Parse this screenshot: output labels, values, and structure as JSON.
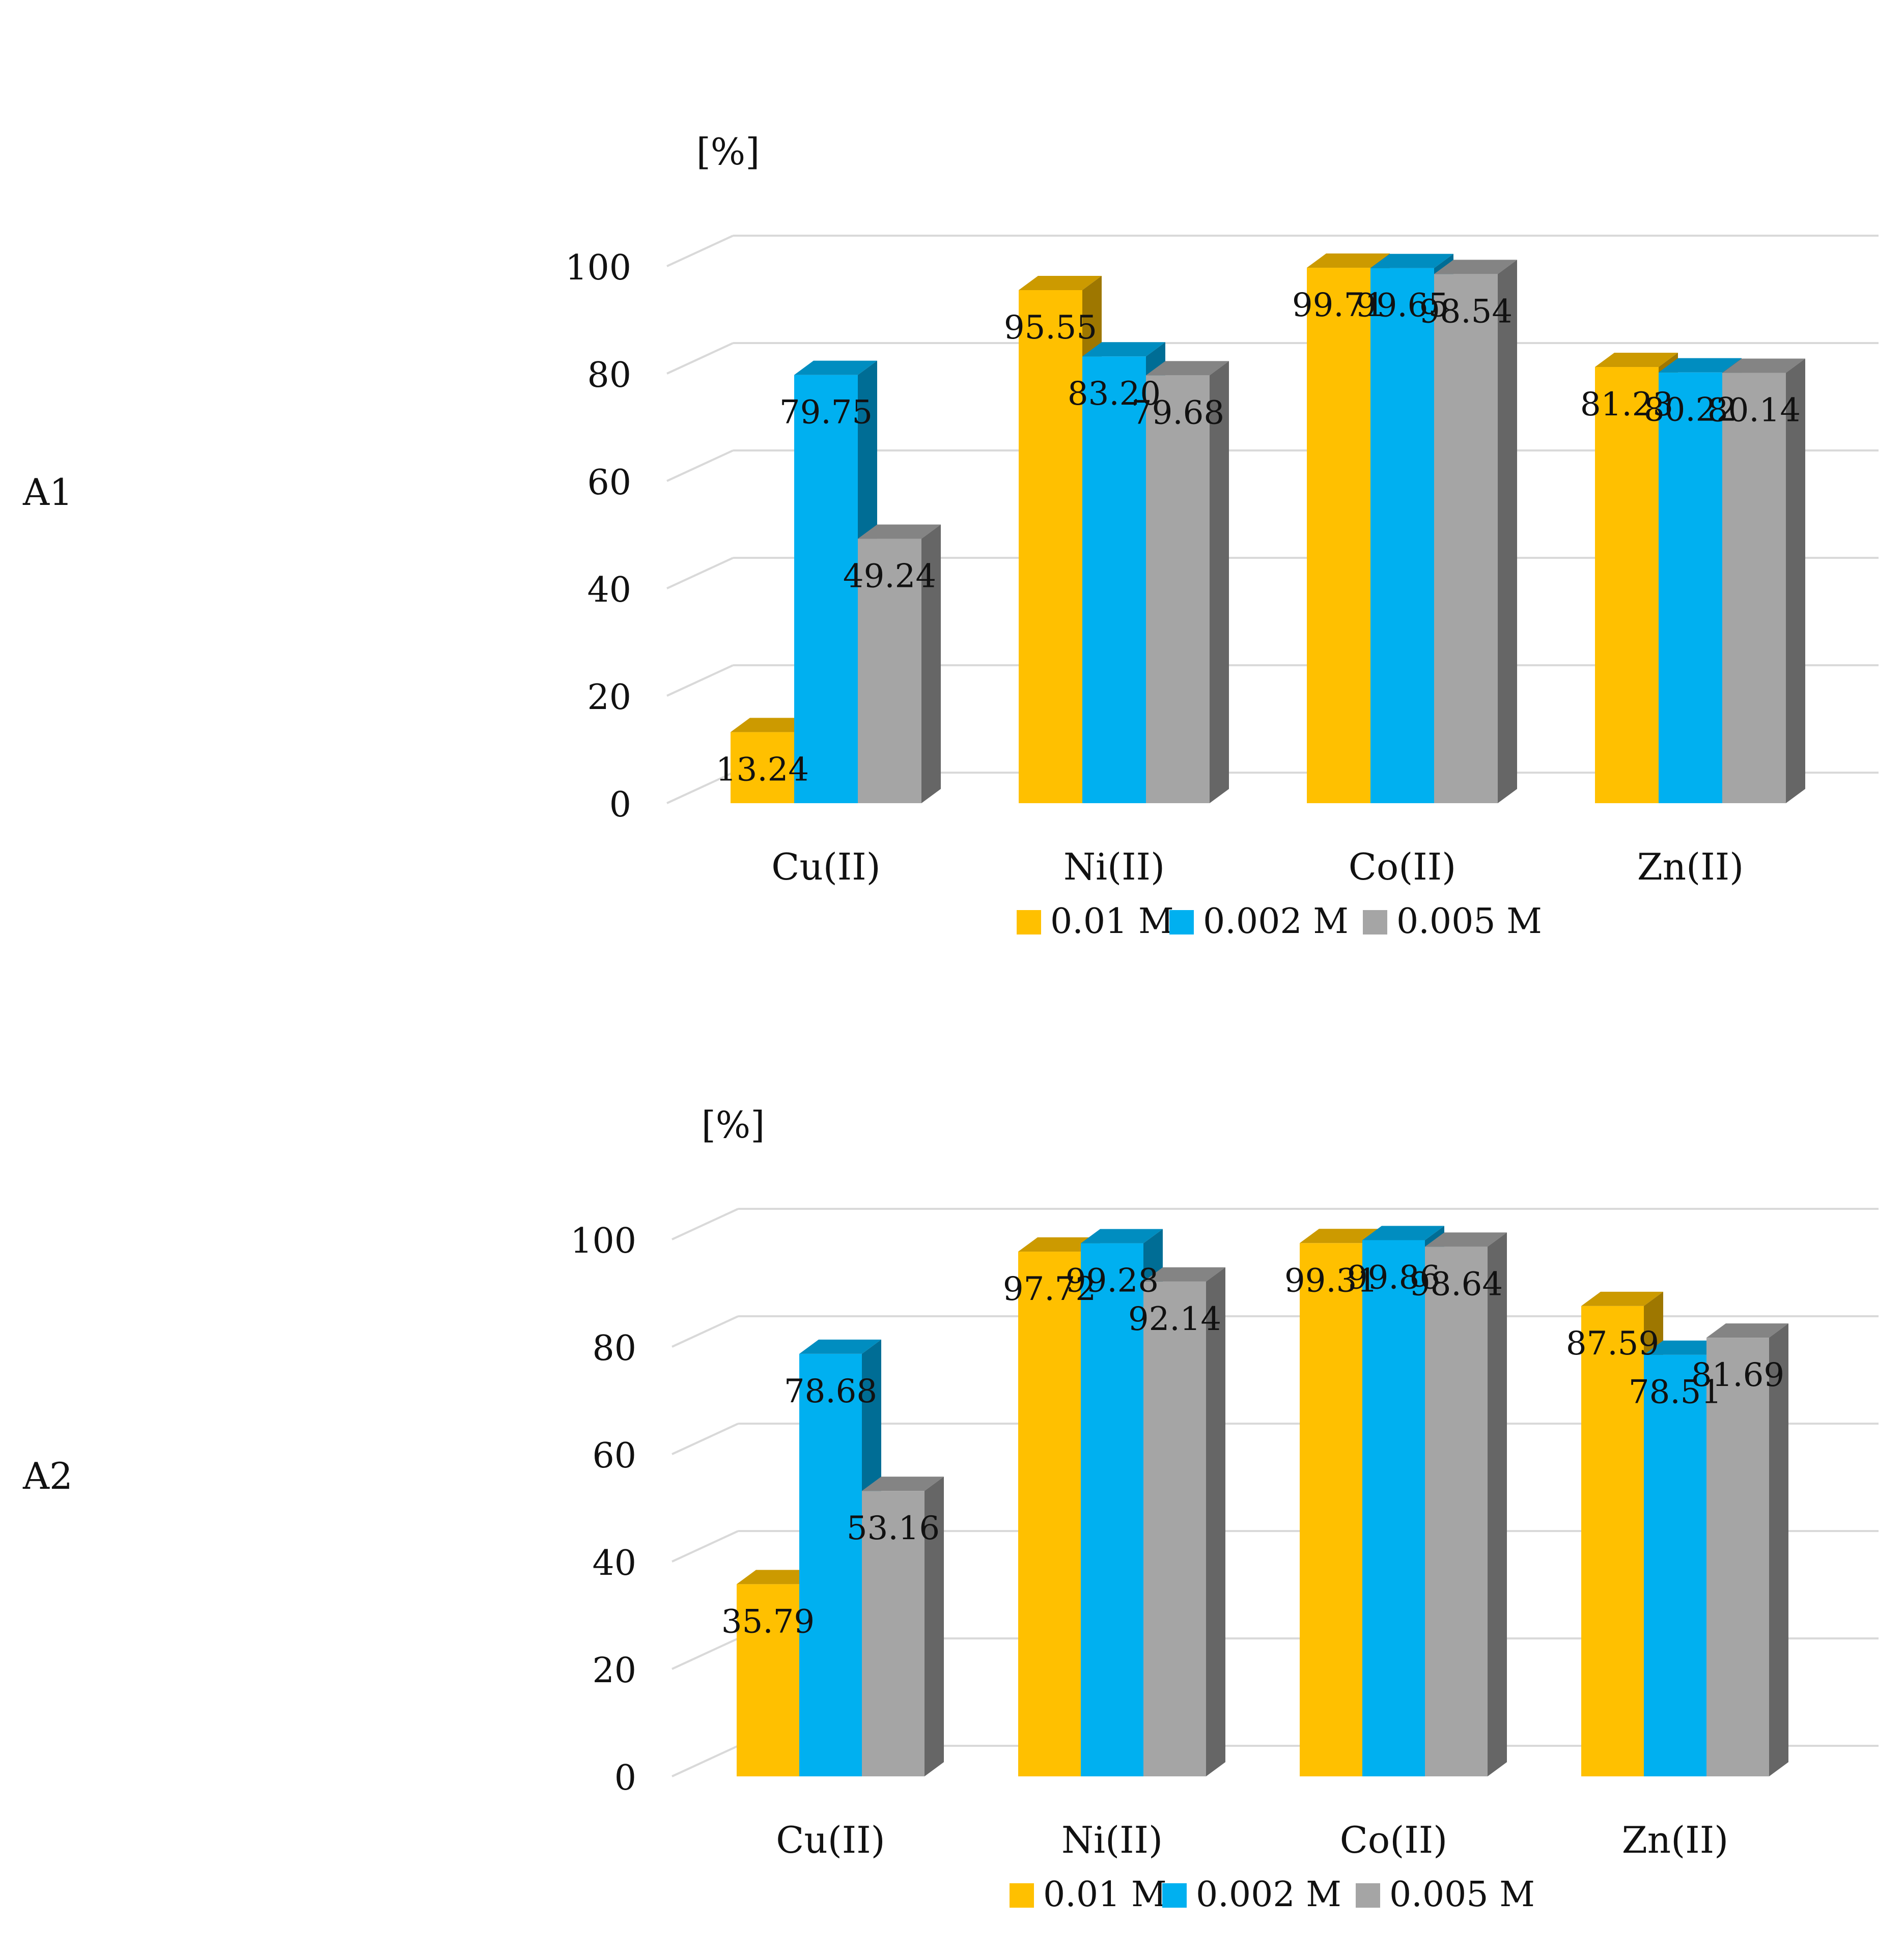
{
  "charts": [
    {
      "panel_label": "A1",
      "chart_data": {
        "type": "bar",
        "title": "",
        "ylabel": "[%]",
        "xlabel": "",
        "ylim": [
          0,
          100
        ],
        "yticks": [
          "0",
          "20",
          "40",
          "60",
          "80",
          "100"
        ],
        "categories": [
          "Cu(II)",
          "Ni(II)",
          "Co(II)",
          "Zn(II)"
        ],
        "series": [
          {
            "name": "0.01 M",
            "color": "#FFC000",
            "values": [
              13.24,
              95.55,
              99.71,
              81.23
            ],
            "labels": [
              "13.24",
              "95.55",
              "99.71",
              "81.23"
            ]
          },
          {
            "name": "0.002 M",
            "color": "#00B0F0",
            "values": [
              79.75,
              83.2,
              99.65,
              80.22
            ],
            "labels": [
              "79.75",
              "83.20",
              "99.65",
              "80.22"
            ]
          },
          {
            "name": "0.005 M",
            "color": "#A5A5A5",
            "values": [
              49.24,
              79.68,
              98.54,
              80.14
            ],
            "labels": [
              "49.24",
              "79.68",
              "98.54",
              "80.14"
            ]
          }
        ],
        "legend_position": "bottom"
      }
    },
    {
      "panel_label": "A2",
      "chart_data": {
        "type": "bar",
        "title": "",
        "ylabel": "[%]",
        "xlabel": "",
        "ylim": [
          0,
          100
        ],
        "yticks": [
          "0",
          "20",
          "40",
          "60",
          "80",
          "100"
        ],
        "categories": [
          "Cu(II)",
          "Ni(II)",
          "Co(II)",
          "Zn(II)"
        ],
        "series": [
          {
            "name": "0.01 M",
            "color": "#FFC000",
            "values": [
              35.79,
              97.72,
              99.31,
              87.59
            ],
            "labels": [
              "35.79",
              "97.72",
              "99.31",
              "87.59"
            ]
          },
          {
            "name": "0.002 M",
            "color": "#00B0F0",
            "values": [
              78.68,
              99.28,
              99.86,
              78.51
            ],
            "labels": [
              "78.68",
              "99.28",
              "99.86",
              "78.51"
            ]
          },
          {
            "name": "0.005 M",
            "color": "#A5A5A5",
            "values": [
              53.16,
              92.14,
              98.64,
              81.69
            ],
            "labels": [
              "53.16",
              "92.14",
              "98.64",
              "81.69"
            ]
          }
        ],
        "legend_position": "bottom"
      }
    }
  ]
}
